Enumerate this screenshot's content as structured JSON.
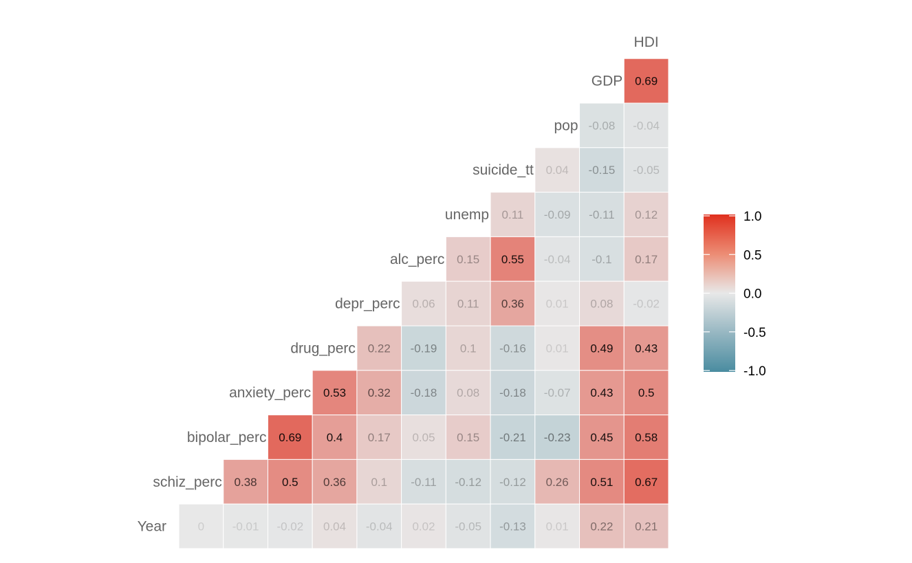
{
  "chart_data": {
    "type": "heatmap",
    "variables": [
      "Year",
      "schiz_perc",
      "bipolar_perc",
      "anxiety_perc",
      "drug_perc",
      "depr_perc",
      "alc_perc",
      "unemp",
      "suicide_tt",
      "pop",
      "GDP",
      "HDI"
    ],
    "rows": [
      {
        "label": "GDP",
        "values": [
          0.69
        ]
      },
      {
        "label": "pop",
        "values": [
          -0.08,
          -0.04
        ]
      },
      {
        "label": "suicide_tt",
        "values": [
          0.04,
          -0.15,
          -0.05
        ]
      },
      {
        "label": "unemp",
        "values": [
          0.11,
          -0.09,
          -0.11,
          0.12
        ]
      },
      {
        "label": "alc_perc",
        "values": [
          0.15,
          0.55,
          -0.04,
          -0.1,
          0.17
        ]
      },
      {
        "label": "depr_perc",
        "values": [
          0.06,
          0.11,
          0.36,
          0.01,
          0.08,
          -0.02
        ]
      },
      {
        "label": "drug_perc",
        "values": [
          0.22,
          -0.19,
          0.1,
          -0.16,
          0.01,
          0.49,
          0.43
        ]
      },
      {
        "label": "anxiety_perc",
        "values": [
          0.53,
          0.32,
          -0.18,
          0.08,
          -0.18,
          -0.07,
          0.43,
          0.5
        ]
      },
      {
        "label": "bipolar_perc",
        "values": [
          0.69,
          0.4,
          0.17,
          0.05,
          0.15,
          -0.21,
          -0.23,
          0.45,
          0.58
        ]
      },
      {
        "label": "schiz_perc",
        "values": [
          0.38,
          0.5,
          0.36,
          0.1,
          -0.11,
          -0.12,
          -0.12,
          0.26,
          0.51,
          0.67
        ]
      },
      {
        "label": "Year",
        "values": [
          0,
          -0.01,
          -0.02,
          0.04,
          -0.04,
          0.02,
          -0.05,
          -0.13,
          0.01,
          0.22,
          0.21
        ]
      }
    ],
    "top_label": "HDI",
    "color_scale": {
      "low": "#4A8CA0",
      "mid": "#E8E8E8",
      "high": "#E0301E",
      "limits": [
        -1,
        1
      ]
    },
    "legend": {
      "position": "right",
      "ticks": [
        "1.0",
        "0.5",
        "0.0",
        "-0.5",
        "-1.0"
      ]
    }
  }
}
